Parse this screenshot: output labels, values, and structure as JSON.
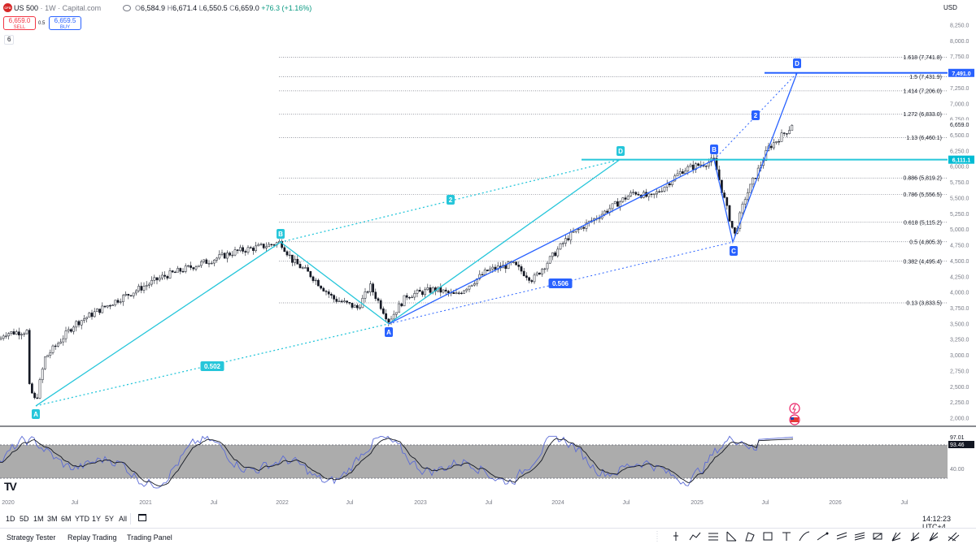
{
  "header": {
    "symbol_icon": "CFD",
    "symbol": "US 500",
    "interval": "1W",
    "source": "Capital.com",
    "title_sep": "·",
    "ohlc": [
      {
        "key": "O",
        "value": "6,584.9"
      },
      {
        "key": "H",
        "value": "6,671.4"
      },
      {
        "key": "L",
        "value": "6,550.5"
      },
      {
        "key": "C",
        "value": "6,659.0"
      }
    ],
    "change": "+76.3 (+1.16%)",
    "currency": "USD"
  },
  "trade": {
    "sell_price": "6,659.0",
    "sell_label": "SELL",
    "spread": "0.5",
    "buy_price": "6,659.5",
    "buy_label": "BUY"
  },
  "indicator_count": "6",
  "logo_text": "TV",
  "price_axis": [
    "8,250.0",
    "8,000.0",
    "7,750.0",
    "7,500.0",
    "7,250.0",
    "7,000.0",
    "6,750.0",
    "6,500.0",
    "6,250.0",
    "6,000.0",
    "5,750.0",
    "5,500.0",
    "5,250.0",
    "5,000.0",
    "4,750.0",
    "4,500.0",
    "4,250.0",
    "4,000.0",
    "3,750.0",
    "3,500.0",
    "3,250.0",
    "3,000.0",
    "2,750.0",
    "2,500.0",
    "2,250.0",
    "2,000.0"
  ],
  "price_badges": {
    "target": {
      "label": "7,491.0",
      "color": "#2962ff"
    },
    "current": {
      "label": "6,659.0"
    },
    "level": {
      "label": "6,111.1",
      "color": "#00bcd4"
    }
  },
  "fib_levels": [
    {
      "ratio": "1.618",
      "label": "1.618 (7,741.8)",
      "price": 7741.8
    },
    {
      "ratio": "1.5",
      "label": "1.5 (7,431.9)",
      "price": 7431.9
    },
    {
      "ratio": "1.414",
      "label": "1.414 (7,206.0)",
      "price": 7206.0
    },
    {
      "ratio": "1.272",
      "label": "1.272 (6,833.0)",
      "price": 6833.0
    },
    {
      "ratio": "1.13",
      "label": "1.13 (6,460.1)",
      "price": 6460.1
    },
    {
      "ratio": "0.886",
      "label": "0.886 (5,819.2)",
      "price": 5819.2
    },
    {
      "ratio": "0.786",
      "label": "0.786 (5,556.5)",
      "price": 5556.5
    },
    {
      "ratio": "0.618",
      "label": "0.618 (5,115.2)",
      "price": 5115.2
    },
    {
      "ratio": "0.5",
      "label": "0.5 (4,805.3)",
      "price": 4805.3
    },
    {
      "ratio": "0.382",
      "label": "0.382 (4,495.4)",
      "price": 4495.4
    },
    {
      "ratio": "0.13",
      "label": "0.13 (3,833.5)",
      "price": 3833.5
    }
  ],
  "patterns": {
    "cyan": {
      "color": "#26c6da",
      "points": {
        "A": "A",
        "B": "B",
        "C": "A",
        "D": "D"
      },
      "ratio_lower": "0.502",
      "ratio_upper": "2"
    },
    "blue": {
      "color": "#2962ff",
      "points": {
        "A": "A",
        "B": "B",
        "C": "C",
        "D": "D"
      },
      "ratio_lower": "0.506",
      "ratio_upper": "2"
    }
  },
  "time_axis": [
    "2020",
    "Jul",
    "2021",
    "Jul",
    "2022",
    "Jul",
    "2023",
    "Jul",
    "2024",
    "Jul",
    "2025",
    "Jul",
    "2026",
    "Jul"
  ],
  "oscillator": {
    "value_1": "97.01",
    "value_2": "93.46",
    "level_label": "40.00"
  },
  "ranges": [
    "1D",
    "5D",
    "1M",
    "3M",
    "6M",
    "YTD",
    "1Y",
    "5Y",
    "All"
  ],
  "clock": "14:12:23 UTC+4",
  "bottom_tabs": [
    "Strategy Tester",
    "Replay Trading",
    "Trading Panel"
  ],
  "toolbar_icons": [
    "vertical-line-icon",
    "path-icon",
    "fib-retracement-icon",
    "triangle-icon",
    "rectangle-icon",
    "text-icon",
    "brush-icon",
    "arrow-icon",
    "channel-icon",
    "ruler-icon",
    "gann-icon",
    "measure-icon",
    "forecast-icon",
    "zoom-icon"
  ]
}
